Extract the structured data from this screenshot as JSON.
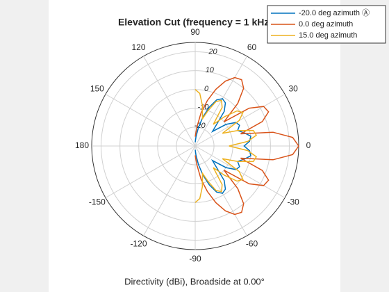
{
  "chart_data": {
    "type": "polar",
    "title": "Elevation Cut (frequency = 1 kHz)",
    "xlabel": "Directivity (dBi), Broadside at 0.00°",
    "thetaticks": [
      0,
      30,
      60,
      90,
      120,
      150,
      180,
      -150,
      -120,
      -90,
      -60,
      -30
    ],
    "rlim": [
      -30,
      25
    ],
    "rticks": [
      -20,
      -10,
      0,
      10,
      20
    ],
    "grid": true,
    "legend": "northeast",
    "x": [
      -90,
      -85,
      -80,
      -75,
      -70,
      -65,
      -60,
      -55,
      -50,
      -45,
      -40,
      -35,
      -30,
      -25,
      -20,
      -15,
      -10,
      -5,
      0,
      5,
      10,
      15,
      20,
      25,
      30,
      35,
      40,
      45,
      50,
      55,
      60,
      65,
      70,
      75,
      80,
      85,
      90
    ],
    "series": [
      {
        "name": "-20.0 deg azimuth Ⓐ",
        "color": "#0072bd",
        "values": [
          -28,
          -25,
          -20,
          -14,
          -8,
          -3,
          -1,
          -2,
          -6,
          -14,
          -18,
          -10,
          -5,
          -4,
          -6,
          -3,
          0,
          -1,
          -4,
          -1,
          0,
          -3,
          -6,
          -4,
          -5,
          -10,
          -18,
          -14,
          -6,
          -2,
          -1,
          -3,
          -8,
          -14,
          -20,
          -25,
          -28
        ]
      },
      {
        "name": "0.0 deg azimuth",
        "color": "#d95319",
        "values": [
          -25,
          -20,
          -12,
          -5,
          2,
          8,
          12,
          13,
          10,
          2,
          -10,
          5,
          12,
          13,
          8,
          -5,
          12,
          22,
          25,
          22,
          12,
          -5,
          8,
          13,
          12,
          5,
          -10,
          2,
          10,
          13,
          12,
          8,
          2,
          -5,
          -12,
          -20,
          -25
        ]
      },
      {
        "name": "15.0 deg azimuth",
        "color": "#edb120",
        "values": [
          0,
          -2,
          -8,
          -15,
          -10,
          -4,
          -2,
          -5,
          -15,
          -8,
          -1,
          1,
          -3,
          -14,
          -6,
          2,
          3,
          -2,
          -12,
          -2,
          3,
          2,
          -6,
          -14,
          -3,
          1,
          -1,
          -8,
          -15,
          -5,
          -2,
          -4,
          -10,
          -15,
          -8,
          -2,
          0
        ]
      }
    ]
  }
}
